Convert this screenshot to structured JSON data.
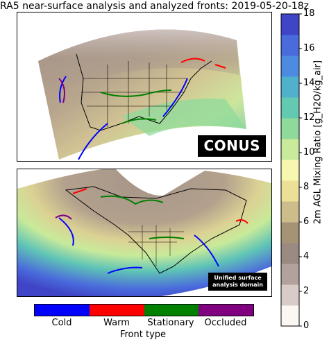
{
  "title": "RA5 near-surface analysis and analyzed fronts: 2019-05-20-18z",
  "panels": {
    "top_label": "CONUS",
    "bottom_label_line1": "Unified surface",
    "bottom_label_line2": "analysis domain"
  },
  "colorbar": {
    "label": "2m AGL Mixing Ratio [g_H2O/kg_air]",
    "min": 0,
    "max": 18,
    "ticks": [
      "0",
      "2",
      "4",
      "6",
      "8",
      "10",
      "12",
      "14",
      "16",
      "18"
    ],
    "colormap": [
      "#fbf8f4",
      "#d9ccc8",
      "#b3a19d",
      "#9b8a82",
      "#a59376",
      "#cdbd8a",
      "#ecdf96",
      "#f8f7b0",
      "#c8ea9a",
      "#8fd99b",
      "#63c9b0",
      "#4fb1cc",
      "#4c8bdf",
      "#4a6bdc",
      "#3f45c6"
    ]
  },
  "chart_data": {
    "type": "heatmap",
    "title": "RA5 near-surface analysis and analyzed fronts: 2019-05-20-18z",
    "variable": "2m AGL Mixing Ratio",
    "units": "g_H2O/kg_air",
    "value_range": [
      0,
      18
    ],
    "panels": [
      "CONUS",
      "Unified surface analysis domain"
    ],
    "legend": {
      "title": "Front type",
      "placement": "bottom",
      "entries": [
        {
          "name": "Cold",
          "color": "#0000ff"
        },
        {
          "name": "Warm",
          "color": "#ff0000"
        },
        {
          "name": "Stationary",
          "color": "#008000"
        },
        {
          "name": "Occluded",
          "color": "#800080"
        }
      ]
    }
  }
}
